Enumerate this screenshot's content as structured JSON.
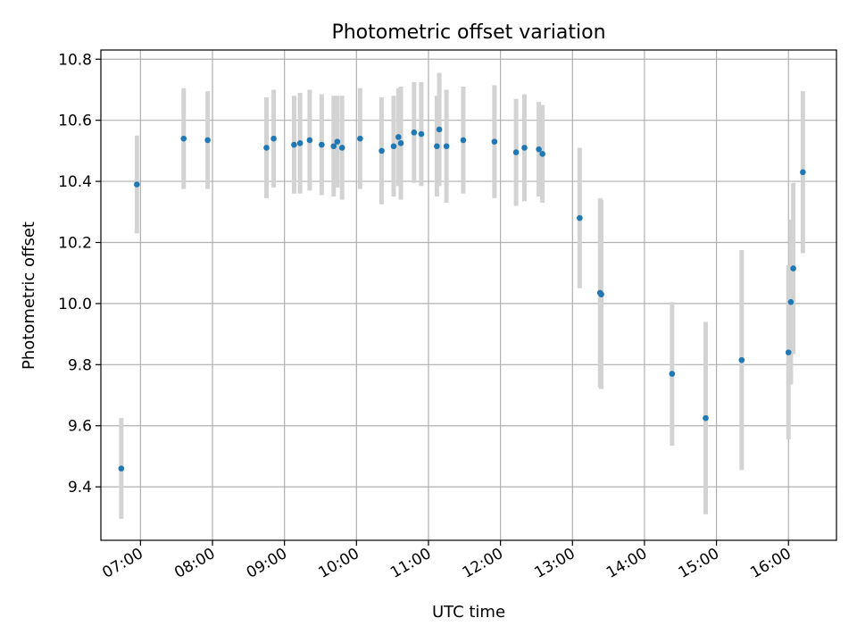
{
  "chart_data": {
    "type": "scatter",
    "title": "Photometric offset variation",
    "xlabel": "UTC time",
    "ylabel": "Photometric offset",
    "grid": true,
    "xlim": [
      "06:27",
      "16:40"
    ],
    "ylim": [
      9.225,
      10.83
    ],
    "x_ticks": [
      "07:00",
      "08:00",
      "09:00",
      "10:00",
      "11:00",
      "12:00",
      "13:00",
      "14:00",
      "15:00",
      "16:00"
    ],
    "y_ticks": [
      9.4,
      9.6,
      9.8,
      10.0,
      10.2,
      10.4,
      10.6,
      10.8
    ],
    "y_tick_labels": [
      "9.4",
      "9.6",
      "9.8",
      "10.0",
      "10.2",
      "10.4",
      "10.6",
      "10.8"
    ],
    "point_color": "#1f77b4",
    "errorbar_color": "#d3d3d3",
    "points": [
      {
        "x": "06:44",
        "y": 9.46,
        "err": 0.165
      },
      {
        "x": "06:57",
        "y": 10.39,
        "err": 0.16
      },
      {
        "x": "07:36",
        "y": 10.54,
        "err": 0.165
      },
      {
        "x": "07:56",
        "y": 10.535,
        "err": 0.16
      },
      {
        "x": "08:45",
        "y": 10.51,
        "err": 0.165
      },
      {
        "x": "08:51",
        "y": 10.54,
        "err": 0.16
      },
      {
        "x": "09:08",
        "y": 10.52,
        "err": 0.16
      },
      {
        "x": "09:13",
        "y": 10.525,
        "err": 0.165
      },
      {
        "x": "09:21",
        "y": 10.535,
        "err": 0.165
      },
      {
        "x": "09:31",
        "y": 10.52,
        "err": 0.165
      },
      {
        "x": "09:41",
        "y": 10.515,
        "err": 0.165
      },
      {
        "x": "09:44",
        "y": 10.53,
        "err": 0.15
      },
      {
        "x": "09:48",
        "y": 10.51,
        "err": 0.17
      },
      {
        "x": "10:03",
        "y": 10.54,
        "err": 0.165
      },
      {
        "x": "10:21",
        "y": 10.5,
        "err": 0.175
      },
      {
        "x": "10:31",
        "y": 10.515,
        "err": 0.165
      },
      {
        "x": "10:35",
        "y": 10.545,
        "err": 0.16
      },
      {
        "x": "10:37",
        "y": 10.525,
        "err": 0.185
      },
      {
        "x": "10:48",
        "y": 10.56,
        "err": 0.165
      },
      {
        "x": "10:54",
        "y": 10.555,
        "err": 0.17
      },
      {
        "x": "11:07",
        "y": 10.515,
        "err": 0.165
      },
      {
        "x": "11:09",
        "y": 10.57,
        "err": 0.185
      },
      {
        "x": "11:15",
        "y": 10.515,
        "err": 0.185
      },
      {
        "x": "11:29",
        "y": 10.535,
        "err": 0.175
      },
      {
        "x": "11:55",
        "y": 10.53,
        "err": 0.185
      },
      {
        "x": "12:13",
        "y": 10.495,
        "err": 0.175
      },
      {
        "x": "12:20",
        "y": 10.51,
        "err": 0.175
      },
      {
        "x": "12:32",
        "y": 10.505,
        "err": 0.155
      },
      {
        "x": "12:35",
        "y": 10.49,
        "err": 0.16
      },
      {
        "x": "13:06",
        "y": 10.28,
        "err": 0.23
      },
      {
        "x": "13:23",
        "y": 10.035,
        "err": 0.31
      },
      {
        "x": "13:24",
        "y": 10.03,
        "err": 0.31
      },
      {
        "x": "14:23",
        "y": 9.77,
        "err": 0.235
      },
      {
        "x": "14:51",
        "y": 9.625,
        "err": 0.315
      },
      {
        "x": "15:21",
        "y": 9.815,
        "err": 0.36
      },
      {
        "x": "16:00",
        "y": 9.84,
        "err": 0.285
      },
      {
        "x": "16:02",
        "y": 10.005,
        "err": 0.27
      },
      {
        "x": "16:04",
        "y": 10.115,
        "err": 0.28
      },
      {
        "x": "16:12",
        "y": 10.43,
        "err": 0.265
      }
    ]
  }
}
